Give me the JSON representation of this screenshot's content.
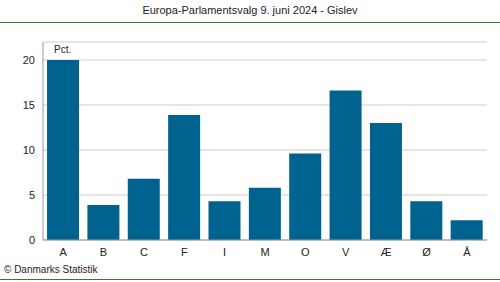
{
  "chart_data": {
    "type": "bar",
    "title": "Europa-Parlamentsvalg 9. juni 2024 - Gislev",
    "y_label": "Pct.",
    "source": "© Danmarks Statistik",
    "categories": [
      "A",
      "B",
      "C",
      "F",
      "I",
      "M",
      "O",
      "V",
      "Æ",
      "Ø",
      "Å"
    ],
    "values": [
      20.0,
      3.9,
      6.8,
      13.9,
      4.3,
      5.8,
      9.6,
      16.6,
      13.0,
      4.3,
      2.2
    ],
    "color": "#00628f",
    "ylim": [
      0,
      22
    ],
    "yticks": [
      0,
      5,
      10,
      15,
      20
    ],
    "grid": true
  }
}
